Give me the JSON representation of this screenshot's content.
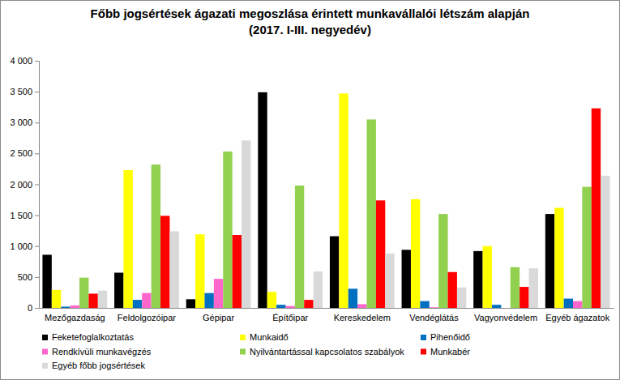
{
  "chart_data": {
    "type": "bar",
    "title": "Főbb jogsértések ágazati megoszlása érintett munkavállalói létszám alapján (2017. I-III. negyedév)",
    "categories": [
      "Mezőgazdaság",
      "Feldolgozóipar",
      "Gépipar",
      "Építőipar",
      "Kereskedelem",
      "Vendéglátás",
      "Vagyonvédelem",
      "Egyéb ágazatok"
    ],
    "series": [
      {
        "name": "Feketefoglalkoztatás",
        "color": "#000000",
        "values": [
          860,
          570,
          140,
          3490,
          1160,
          940,
          920,
          1520
        ]
      },
      {
        "name": "Munkaidő",
        "color": "#ffff00",
        "values": [
          290,
          2230,
          1190,
          260,
          3470,
          1760,
          1000,
          1620
        ]
      },
      {
        "name": "Pihenőidő",
        "color": "#0070c0",
        "values": [
          20,
          130,
          240,
          50,
          310,
          110,
          50,
          150
        ]
      },
      {
        "name": "Rendkívüli munkavégzés",
        "color": "#ff66cc",
        "values": [
          40,
          240,
          470,
          30,
          60,
          10,
          0,
          110
        ]
      },
      {
        "name": "Nyilvántartással kapcsolatos szabályok",
        "color": "#92d050",
        "values": [
          490,
          2320,
          2530,
          1980,
          3050,
          1520,
          660,
          1960
        ]
      },
      {
        "name": "Munkabér",
        "color": "#ff0000",
        "values": [
          230,
          1490,
          1180,
          130,
          1740,
          580,
          340,
          3230
        ]
      },
      {
        "name": "Egyéb főbb jogsértések",
        "color": "#d9d9d9",
        "values": [
          280,
          1240,
          2710,
          590,
          880,
          330,
          640,
          2140
        ]
      }
    ],
    "ylim": [
      0,
      4000
    ],
    "yticks": [
      0,
      500,
      {
        "value": 1000,
        "label": "1 000"
      },
      {
        "value": 1500,
        "label": "1 500"
      },
      {
        "value": 2000,
        "label": "2 000"
      },
      {
        "value": 2500,
        "label": "2 500"
      },
      {
        "value": 3000,
        "label": "3 000"
      },
      {
        "value": 3500,
        "label": "3 500"
      },
      {
        "value": 4000,
        "label": "4 000"
      }
    ],
    "grid": false,
    "legend": "bottom"
  }
}
